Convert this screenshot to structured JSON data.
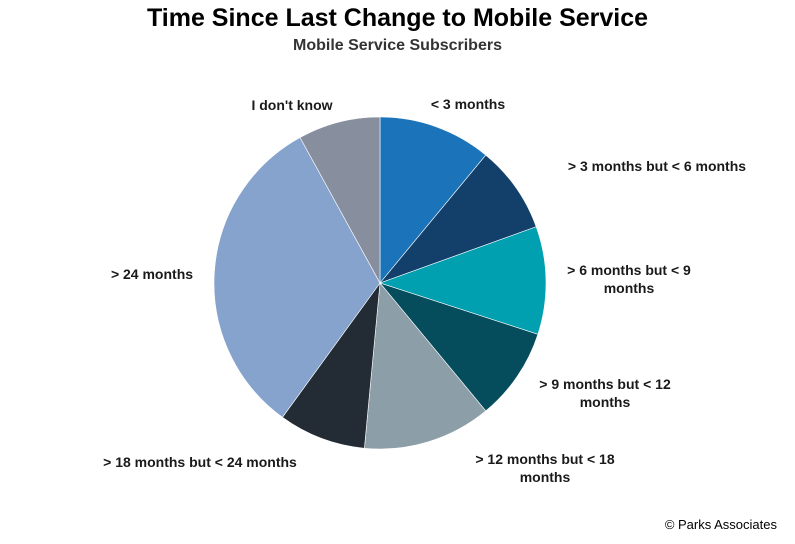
{
  "chart_data": {
    "type": "pie",
    "title": "Time Since Last Change to Mobile Service",
    "subtitle": "Mobile Service Subscribers",
    "slices": [
      {
        "label": [
          "< 3 months"
        ],
        "value": 11,
        "color": "#1b74ba"
      },
      {
        "label": [
          "> 3 months but < 6 months"
        ],
        "value": 8.5,
        "color": "#13406b"
      },
      {
        "label": [
          "> 6 months but < 9",
          "months"
        ],
        "value": 10.5,
        "color": "#00a0b0"
      },
      {
        "label": [
          "> 9 months but < 12",
          "months"
        ],
        "value": 9,
        "color": "#054d5c"
      },
      {
        "label": [
          "> 12 months but < 18",
          "months"
        ],
        "value": 12.5,
        "color": "#8c9ea8"
      },
      {
        "label": [
          "> 18 months but < 24 months"
        ],
        "value": 8.5,
        "color": "#232b34"
      },
      {
        "label": [
          "> 24 months"
        ],
        "value": 32,
        "color": "#85a3cd"
      },
      {
        "label": [
          "I don't know"
        ],
        "value": 8,
        "color": "#878f9f"
      }
    ]
  },
  "source": "© Parks Associates"
}
